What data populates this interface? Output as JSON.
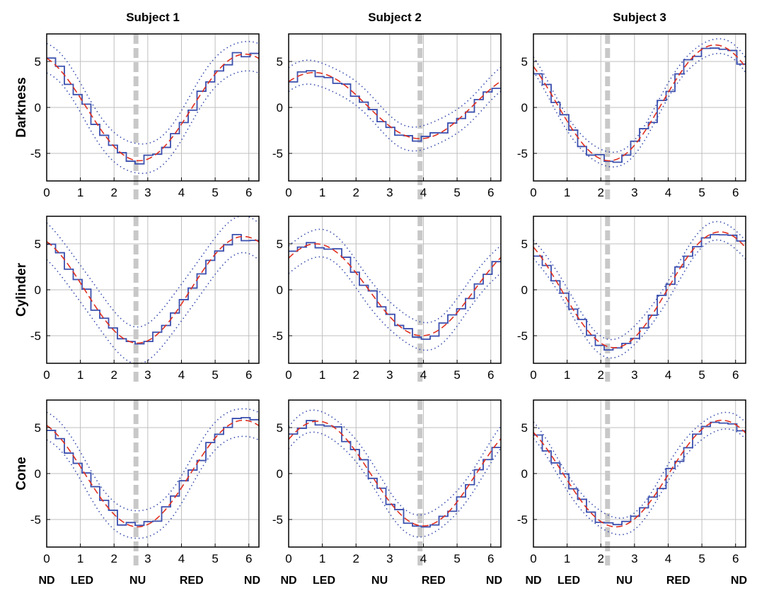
{
  "chart_data": {
    "type": "line",
    "layout": "3x3 small multiples",
    "column_titles": [
      "Subject 1",
      "Subject 2",
      "Subject 3"
    ],
    "row_titles": [
      "Darkness",
      "Cylinder",
      "Cone"
    ],
    "xlim": [
      0,
      6.3
    ],
    "ylim": [
      -8,
      8
    ],
    "x_ticks": [
      0,
      1,
      2,
      3,
      4,
      5,
      6
    ],
    "y_ticks": [
      -5,
      0,
      5
    ],
    "direction_labels": [
      "ND",
      "LED",
      "NU",
      "RED",
      "ND"
    ],
    "direction_label_positions": [
      0,
      1.05,
      2.7,
      4.3,
      6.1
    ],
    "grid": true,
    "colors": {
      "step": "#3a4fae",
      "ci": "#3a4fae",
      "fit": "#e03020",
      "marker": "#c8c8c8",
      "grid": "#bfbfbf"
    },
    "panels": [
      {
        "row": 0,
        "col": 0,
        "marker_x": 2.65,
        "fit": {
          "amplitude": 5.8,
          "trough_x": 2.75
        },
        "ci_halfwidth": 1.6,
        "steps": 24
      },
      {
        "row": 0,
        "col": 1,
        "marker_x": 3.9,
        "fit": {
          "amplitude": 3.6,
          "trough_x": 3.9,
          "offset": 0.2
        },
        "ci_halfwidth": 1.3,
        "steps": 24
      },
      {
        "row": 0,
        "col": 2,
        "marker_x": 2.2,
        "fit": {
          "amplitude": 6.3,
          "trough_x": 2.25,
          "offset": 0.5
        },
        "ci_halfwidth": 0.8,
        "steps": 24
      },
      {
        "row": 1,
        "col": 0,
        "marker_x": 2.65,
        "fit": {
          "amplitude": 5.8,
          "trough_x": 2.7
        },
        "ci_halfwidth": 2.0,
        "steps": 24
      },
      {
        "row": 1,
        "col": 1,
        "marker_x": 3.9,
        "fit": {
          "amplitude": 5.0,
          "trough_x": 3.95
        },
        "ci_halfwidth": 1.5,
        "steps": 24
      },
      {
        "row": 1,
        "col": 2,
        "marker_x": 2.2,
        "fit": {
          "amplitude": 6.3,
          "trough_x": 2.4
        },
        "ci_halfwidth": 1.0,
        "steps": 24
      },
      {
        "row": 2,
        "col": 0,
        "marker_x": 2.65,
        "fit": {
          "amplitude": 5.8,
          "trough_x": 2.7
        },
        "ci_halfwidth": 1.5,
        "steps": 24
      },
      {
        "row": 2,
        "col": 1,
        "marker_x": 3.9,
        "fit": {
          "amplitude": 5.7,
          "trough_x": 4.0
        },
        "ci_halfwidth": 1.2,
        "steps": 24
      },
      {
        "row": 2,
        "col": 2,
        "marker_x": 2.2,
        "fit": {
          "amplitude": 5.8,
          "trough_x": 2.45
        },
        "ci_halfwidth": 0.9,
        "steps": 24
      }
    ]
  }
}
